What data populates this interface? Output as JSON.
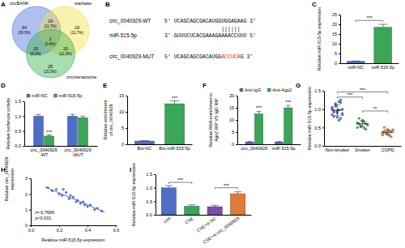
{
  "chart_data": [
    {
      "type": "venn",
      "title": "A",
      "sets": [
        {
          "name": "circBANK",
          "color": "#4f74d9"
        },
        {
          "name": "starbase",
          "color": "#f2e14c"
        },
        {
          "name": "circinteractome",
          "color": "#3fb34f"
        }
      ],
      "regions": [
        {
          "sets": [
            0
          ],
          "value": 64,
          "share": "(39.3%)"
        },
        {
          "sets": [
            0,
            1
          ],
          "value": 19,
          "share": "(11.7%)"
        },
        {
          "sets": [
            1
          ],
          "value": 19,
          "share": "(11.7%)"
        },
        {
          "sets": [
            0,
            1,
            2
          ],
          "value": 1,
          "share": "(0.6%)"
        },
        {
          "sets": [
            0,
            2
          ],
          "value": 15,
          "share": "(9.2%)"
        },
        {
          "sets": [
            1,
            2
          ],
          "value": 20,
          "share": "(12.3%)"
        },
        {
          "sets": [
            2
          ],
          "value": 25,
          "share": "(15.3%)"
        }
      ]
    },
    {
      "type": "sequence",
      "title": "B",
      "rows": [
        {
          "name": "circ_0040929-WT",
          "parts": [
            {
              "text": "5' UCAGCAGCGACAUGGUGGAGAAG 3'"
            }
          ]
        },
        {
          "name": "miR-515-5p",
          "parts": [
            {
              "text": "3' GUUUCUCACGAAAGAAAACCUUU 5'"
            }
          ]
        },
        {
          "name": "circ_0040929-MUT",
          "parts": [
            {
              "text": "5' UCAGCAGCGACAUGG"
            },
            {
              "text": "ACCUCA",
              "color": "#e02020"
            },
            {
              "text": "G 3'"
            }
          ]
        }
      ],
      "pairing": "||||||"
    },
    {
      "type": "bar",
      "title": "C",
      "y_label": "Relative miR-515-5p expression",
      "categories": [
        "miR-NC",
        "miR-515-5p"
      ],
      "values": [
        1,
        18.5
      ],
      "errors": [
        0.15,
        1.5
      ],
      "colors": [
        "#4f6fc6",
        "#3aa657"
      ],
      "ylim": [
        0,
        25
      ],
      "yticks": [
        0,
        5,
        10,
        15,
        20,
        25
      ],
      "annotations": [
        {
          "text": "***",
          "from": 0,
          "to": 1,
          "y": 22
        }
      ]
    },
    {
      "type": "bar",
      "title": "D",
      "y_label": "Relative luciferase activity",
      "categories": [
        "circ_0040929\n-WT",
        "circ_0040929\n-MUT"
      ],
      "series": [
        {
          "name": "miR-NC",
          "color": "#4f6fc6",
          "values": [
            1,
            1
          ],
          "errors": [
            0.05,
            0.06
          ]
        },
        {
          "name": "miR-515-5p",
          "color": "#3aa657",
          "values": [
            0.33,
            0.95
          ],
          "errors": [
            0.04,
            0.05
          ]
        }
      ],
      "legend": "top",
      "ylim": [
        0,
        1.5
      ],
      "yticks": [
        {
          "value": 0,
          "label": "0.0"
        },
        0.5,
        {
          "value": 1,
          "label": "1.0"
        },
        1.5
      ],
      "annotations": [
        {
          "text": "***",
          "category": 0,
          "series": 1,
          "y": 0.42
        }
      ]
    },
    {
      "type": "bar",
      "title": "E",
      "y_label": "Relative enrichment\nof circ_0040929",
      "categories": [
        "Bio-NC",
        "Bio-miR-515-5p"
      ],
      "values": [
        1,
        12.5
      ],
      "errors": [
        0.1,
        0.9
      ],
      "colors": [
        "#4f6fc6",
        "#3aa657"
      ],
      "ylim": [
        0,
        15
      ],
      "yticks": [
        0,
        5,
        10,
        15
      ],
      "annotations": [
        {
          "text": "***",
          "category": 1,
          "y": 13.8
        }
      ]
    },
    {
      "type": "bar",
      "title": "F",
      "y_label": "Relative RNA enrichment in\nAgo2 RIP VS IgG RIP",
      "categories": [
        "circ_0040929",
        "miR-515-5p"
      ],
      "series": [
        {
          "name": "Anti-IgG",
          "color": "#4f6fc6",
          "values": [
            1,
            1
          ],
          "errors": [
            0.1,
            0.1
          ]
        },
        {
          "name": "Anti-Ago2",
          "color": "#3aa657",
          "values": [
            12.5,
            15
          ],
          "errors": [
            1,
            1
          ]
        }
      ],
      "legend": "top",
      "ylim": [
        0,
        20
      ],
      "yticks": [
        0,
        5,
        10,
        15,
        20
      ],
      "annotations": [
        {
          "text": "***",
          "category": 0,
          "series": 1,
          "y": 14.3
        },
        {
          "text": "***",
          "category": 1,
          "series": 1,
          "y": 16.8
        }
      ]
    },
    {
      "type": "dot",
      "title": "G",
      "y_label": "Relative miR-515-5p expression",
      "categories": [
        "Non-smoker",
        "Smoker",
        "COPD"
      ],
      "values": [
        [
          0.85,
          0.95,
          1.1,
          0.9,
          1.2,
          0.75,
          1.0,
          1.05,
          0.8,
          1.15,
          0.95,
          0.7,
          1.18,
          0.88,
          1.0,
          0.92,
          1.08,
          0.78,
          0.98,
          1.25,
          0.85,
          1.02
        ],
        [
          0.5,
          0.6,
          0.55,
          0.7,
          0.65,
          0.45,
          0.58,
          0.62,
          0.75,
          0.52,
          0.68,
          0.48,
          0.6,
          0.57,
          0.63
        ],
        [
          0.3,
          0.4,
          0.35,
          0.45,
          0.28,
          0.38,
          0.42,
          0.33,
          0.5,
          0.36,
          0.31,
          0.4,
          0.25,
          0.44,
          0.37
        ]
      ],
      "colors": [
        "#4e79c9",
        "#52b36a",
        "#e8924a"
      ],
      "means": [
        0.97,
        0.6,
        0.37
      ],
      "errors": [
        0.15,
        0.08,
        0.06
      ],
      "ylim": [
        0,
        1.5
      ],
      "yticks": [
        {
          "value": 0,
          "label": "0.0"
        },
        0.5,
        {
          "value": 1,
          "label": "1.0"
        },
        1.5
      ],
      "annotations": [
        {
          "text": "***",
          "from": 0,
          "to": 1,
          "y": 1.33
        },
        {
          "text": "***",
          "from": 0,
          "to": 2,
          "y": 1.47
        },
        {
          "text": "**",
          "from": 1,
          "to": 2,
          "y": 0.95
        }
      ]
    },
    {
      "type": "scatter",
      "title": "H",
      "x_label": "Relative miR-515-5p expression",
      "y_label": "Relative circ_0040929\nexpression",
      "x": [
        0.12,
        0.15,
        0.18,
        0.2,
        0.22,
        0.25,
        0.27,
        0.3,
        0.32,
        0.33,
        0.35,
        0.37,
        0.4,
        0.42,
        0.45,
        0.47,
        0.5,
        0.28,
        0.38,
        0.23
      ],
      "y": [
        2.4,
        2.2,
        2.3,
        2.0,
        1.9,
        2.1,
        1.7,
        1.8,
        1.5,
        1.6,
        1.4,
        1.5,
        1.2,
        1.3,
        1.0,
        1.1,
        0.9,
        1.9,
        1.3,
        2.3
      ],
      "color": "#3a5fcd",
      "trend": {
        "x": [
          0.1,
          0.52
        ],
        "y": [
          2.45,
          0.85
        ]
      },
      "xlim": [
        0,
        0.6
      ],
      "xticks": [
        {
          "value": 0,
          "label": "0.0"
        },
        0.2,
        0.4,
        0.6
      ],
      "ylim": [
        0,
        3
      ],
      "yticks": [
        0,
        1,
        2,
        3
      ],
      "annotations": [
        {
          "text": "r=-0.7686\np<0.001",
          "x": 0.03,
          "y": 0.75
        }
      ]
    },
    {
      "type": "bar",
      "title": "I",
      "y_label": "Relative miR-515-5p expression",
      "categories": [
        "con",
        "CSE",
        "CSE+si-NC",
        "CSE+si-circ_0040929"
      ],
      "values": [
        1.0,
        0.32,
        0.3,
        0.78
      ],
      "errors": [
        0.08,
        0.05,
        0.05,
        0.07
      ],
      "colors": [
        "#4f6fc6",
        "#3aa657",
        "#7b4fa8",
        "#e07a3a"
      ],
      "ylim": [
        0,
        1.5
      ],
      "yticks": [
        {
          "value": 0,
          "label": "0.0"
        },
        0.5,
        {
          "value": 1,
          "label": "1.0"
        },
        1.5
      ],
      "annotations": [
        {
          "text": "***",
          "from": 0,
          "to": 1,
          "y": 1.2
        },
        {
          "text": "***",
          "from": 2,
          "to": 3,
          "y": 1.0
        }
      ]
    }
  ]
}
